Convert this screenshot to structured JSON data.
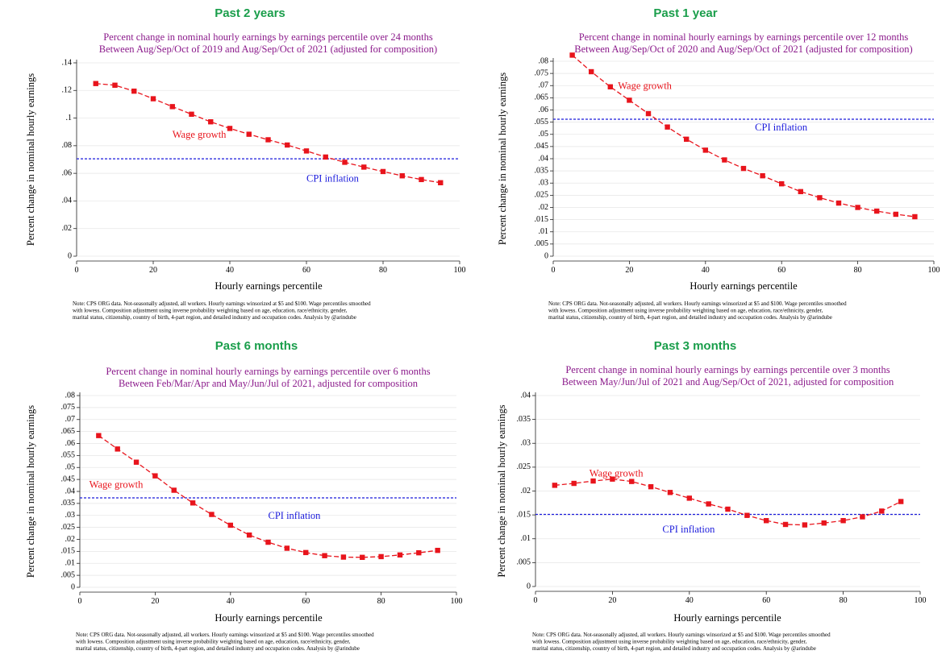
{
  "chart_data": [
    {
      "type": "line",
      "heading": "Past 2 years",
      "title": [
        "Percent change in nominal hourly earnings by earnings percentile over 24 months",
        "Between Aug/Sep/Oct of 2019 and Aug/Sep/Oct of 2021 (adjusted for composition)"
      ],
      "xlabel": "Hourly earnings percentile",
      "ylabel": "Percent change in nominal hourly earnings",
      "xlim": [
        0,
        100
      ],
      "ylim": [
        0,
        0.14
      ],
      "xticks": [
        0,
        20,
        40,
        60,
        80,
        100
      ],
      "xtick_labels": [
        "0",
        "20",
        "40",
        "60",
        "80",
        "100"
      ],
      "yticks": [
        0,
        0.02,
        0.04,
        0.06,
        0.08,
        0.1,
        0.12,
        0.14
      ],
      "ytick_labels": [
        "0",
        ".02",
        ".04",
        ".06",
        ".08",
        ".1",
        ".12",
        ".14"
      ],
      "grid": true,
      "series": [
        {
          "name": "Wage growth",
          "color": "#e8141c",
          "x": [
            5,
            10,
            15,
            20,
            25,
            30,
            35,
            40,
            45,
            50,
            55,
            60,
            65,
            70,
            75,
            80,
            85,
            90,
            95
          ],
          "y": [
            0.125,
            0.1238,
            0.1195,
            0.114,
            0.1083,
            0.1028,
            0.0973,
            0.0925,
            0.0883,
            0.0843,
            0.0805,
            0.0762,
            0.0718,
            0.068,
            0.0645,
            0.0613,
            0.0582,
            0.0555,
            0.0532
          ]
        }
      ],
      "reference_line": {
        "name": "CPI inflation",
        "color": "#1a1adb",
        "y": 0.0705
      },
      "labels": [
        {
          "text": "Wage growth",
          "x": 25,
          "y": 0.0875,
          "cls": "anno-red"
        },
        {
          "text": "CPI inflation",
          "x": 60,
          "y": 0.0555,
          "cls": "anno-blue"
        }
      ],
      "note": [
        "Note: CPS ORG data. Not-seasonally adjusted, all workers. Hourly earnings winsorized at $5 and $100. Wage percentiles smoothed",
        "with lowess. Composition adjustment using inverse probability weighting based on age, education, race/ethnicity, gender,",
        "marital status, citizenship, country of birth, 4-part region, and detailed industry and occupation codes. Analysis by @arindube"
      ]
    },
    {
      "type": "line",
      "heading": "Past 1 year",
      "title": [
        "Percent change in nominal hourly earnings by earnings percentile over 12 months",
        "Between Aug/Sep/Oct of 2020 and Aug/Sep/Oct of 2021 (adjusted for composition)"
      ],
      "xlabel": "Hourly earnings percentile",
      "ylabel": "Percent change in nominal hourly earnings",
      "xlim": [
        0,
        100
      ],
      "ylim": [
        0,
        0.08
      ],
      "xticks": [
        0,
        20,
        40,
        60,
        80,
        100
      ],
      "xtick_labels": [
        "0",
        "20",
        "40",
        "60",
        "80",
        "100"
      ],
      "yticks": [
        0,
        0.005,
        0.01,
        0.015,
        0.02,
        0.025,
        0.03,
        0.035,
        0.04,
        0.045,
        0.05,
        0.055,
        0.06,
        0.065,
        0.07,
        0.075,
        0.08
      ],
      "ytick_labels": [
        "0",
        ".005",
        ".01",
        ".015",
        ".02",
        ".025",
        ".03",
        ".035",
        ".04",
        ".045",
        ".05",
        ".055",
        ".06",
        ".065",
        ".07",
        ".075",
        ".08"
      ],
      "grid": true,
      "series": [
        {
          "name": "Wage growth",
          "color": "#e8141c",
          "x": [
            5,
            10,
            15,
            20,
            25,
            30,
            35,
            40,
            45,
            50,
            55,
            60,
            65,
            70,
            75,
            80,
            85,
            90,
            95
          ],
          "y": [
            0.0825,
            0.0757,
            0.0695,
            0.064,
            0.0585,
            0.053,
            0.048,
            0.0435,
            0.0395,
            0.036,
            0.033,
            0.0297,
            0.0265,
            0.024,
            0.0218,
            0.02,
            0.0185,
            0.0172,
            0.0162
          ]
        }
      ],
      "reference_line": {
        "name": "CPI inflation",
        "color": "#1a1adb",
        "y": 0.0562
      },
      "labels": [
        {
          "text": "Wage growth",
          "x": 17,
          "y": 0.0695,
          "cls": "anno-red"
        },
        {
          "text": "CPI inflation",
          "x": 53,
          "y": 0.0525,
          "cls": "anno-blue"
        }
      ],
      "note": [
        "Note: CPS ORG data. Not-seasonally adjusted, all workers. Hourly earnings winsorized at $5 and $100. Wage percentiles smoothed",
        "with lowess. Composition adjustment using inverse probability weighting based on age, education, race/ethnicity, gender,",
        "marital status, citizenship, country of birth, 4-part region, and detailed industry and occupation codes. Analysis by @arindube"
      ]
    },
    {
      "type": "line",
      "heading": "Past 6 months",
      "title": [
        "Percent change in nominal hourly earnings by earnings percentile over 6 months",
        "Between Feb/Mar/Apr and May/Jun/Jul of 2021, adjusted for composition"
      ],
      "xlabel": "Hourly earnings percentile",
      "ylabel": "Percent change in nominal hourly earnings",
      "xlim": [
        0,
        100
      ],
      "ylim": [
        0,
        0.08
      ],
      "xticks": [
        0,
        20,
        40,
        60,
        80,
        100
      ],
      "xtick_labels": [
        "0",
        "20",
        "40",
        "60",
        "80",
        "100"
      ],
      "yticks": [
        0,
        0.005,
        0.01,
        0.015,
        0.02,
        0.025,
        0.03,
        0.035,
        0.04,
        0.045,
        0.05,
        0.055,
        0.06,
        0.065,
        0.07,
        0.075,
        0.08
      ],
      "ytick_labels": [
        "0",
        ".005",
        ".01",
        ".015",
        ".02",
        ".025",
        ".03",
        ".035",
        ".04",
        ".045",
        ".05",
        ".055",
        ".06",
        ".065",
        ".07",
        ".075",
        ".08"
      ],
      "grid": true,
      "series": [
        {
          "name": "Wage growth",
          "color": "#e8141c",
          "x": [
            5,
            10,
            15,
            20,
            25,
            30,
            35,
            40,
            45,
            50,
            55,
            60,
            65,
            70,
            75,
            80,
            85,
            90,
            95
          ],
          "y": [
            0.0633,
            0.0577,
            0.0522,
            0.0465,
            0.0405,
            0.0352,
            0.0304,
            0.0259,
            0.0218,
            0.0188,
            0.0163,
            0.0145,
            0.0132,
            0.0126,
            0.0125,
            0.0128,
            0.0135,
            0.0144,
            0.0154
          ]
        }
      ],
      "reference_line": {
        "name": "CPI inflation",
        "color": "#1a1adb",
        "y": 0.0373
      },
      "labels": [
        {
          "text": "Wage growth",
          "x": 2.5,
          "y": 0.0425,
          "cls": "anno-red"
        },
        {
          "text": "CPI inflation",
          "x": 50,
          "y": 0.0295,
          "cls": "anno-blue"
        }
      ],
      "note": [
        "Note: CPS ORG data. Not-seasonally adjusted, all workers. Hourly earnings winsorized at $5 and $100. Wage percentiles smoothed",
        "with lowess. Composition adjustment using inverse probability weighting based on age, education, race/ethnicity, gender,",
        "marital status, citizenship, country of birth, 4-part region, and detailed industry and occupation codes. Analysis by @arindube"
      ]
    },
    {
      "type": "line",
      "heading": "Past 3 months",
      "title": [
        "Percent change in nominal hourly earnings by earnings percentile over 3 months",
        "Between May/Jun/Jul of 2021 and Aug/Sep/Oct of 2021, adjusted for composition"
      ],
      "xlabel": "Hourly earnings percentile",
      "ylabel": "Percent change in nominal hourly earnings",
      "xlim": [
        0,
        100
      ],
      "ylim": [
        0,
        0.04
      ],
      "xticks": [
        0,
        20,
        40,
        60,
        80,
        100
      ],
      "xtick_labels": [
        "0",
        "20",
        "40",
        "60",
        "80",
        "100"
      ],
      "yticks": [
        0,
        0.005,
        0.01,
        0.015,
        0.02,
        0.025,
        0.03,
        0.035,
        0.04
      ],
      "ytick_labels": [
        "0",
        ".005",
        ".01",
        ".015",
        ".02",
        ".025",
        ".03",
        ".035",
        ".04"
      ],
      "grid": true,
      "series": [
        {
          "name": "Wage growth",
          "color": "#e8141c",
          "x": [
            5,
            10,
            15,
            20,
            25,
            30,
            35,
            40,
            45,
            50,
            55,
            60,
            65,
            70,
            75,
            80,
            85,
            90,
            95
          ],
          "y": [
            0.0212,
            0.0216,
            0.0221,
            0.0225,
            0.022,
            0.0209,
            0.0197,
            0.0185,
            0.0173,
            0.0162,
            0.0149,
            0.0138,
            0.013,
            0.0129,
            0.0133,
            0.0138,
            0.0146,
            0.0158,
            0.0178
          ]
        }
      ],
      "reference_line": {
        "name": "CPI inflation",
        "color": "#1a1adb",
        "y": 0.0151
      },
      "labels": [
        {
          "text": "Wage growth",
          "x": 14,
          "y": 0.0235,
          "cls": "anno-red"
        },
        {
          "text": "CPI inflation",
          "x": 33,
          "y": 0.0118,
          "cls": "anno-blue"
        }
      ],
      "note": [
        "Note: CPS ORG data. Not-seasonally adjusted, all workers. Hourly earnings winsorized at $5 and $100. Wage percentiles smoothed",
        "with lowess. Composition adjustment using inverse probability weighting based on age, education, race/ethnicity, gender,",
        "marital status, citizenship, country of birth, 4-part region, and detailed industry and occupation codes. Analysis by @arindube"
      ]
    }
  ]
}
